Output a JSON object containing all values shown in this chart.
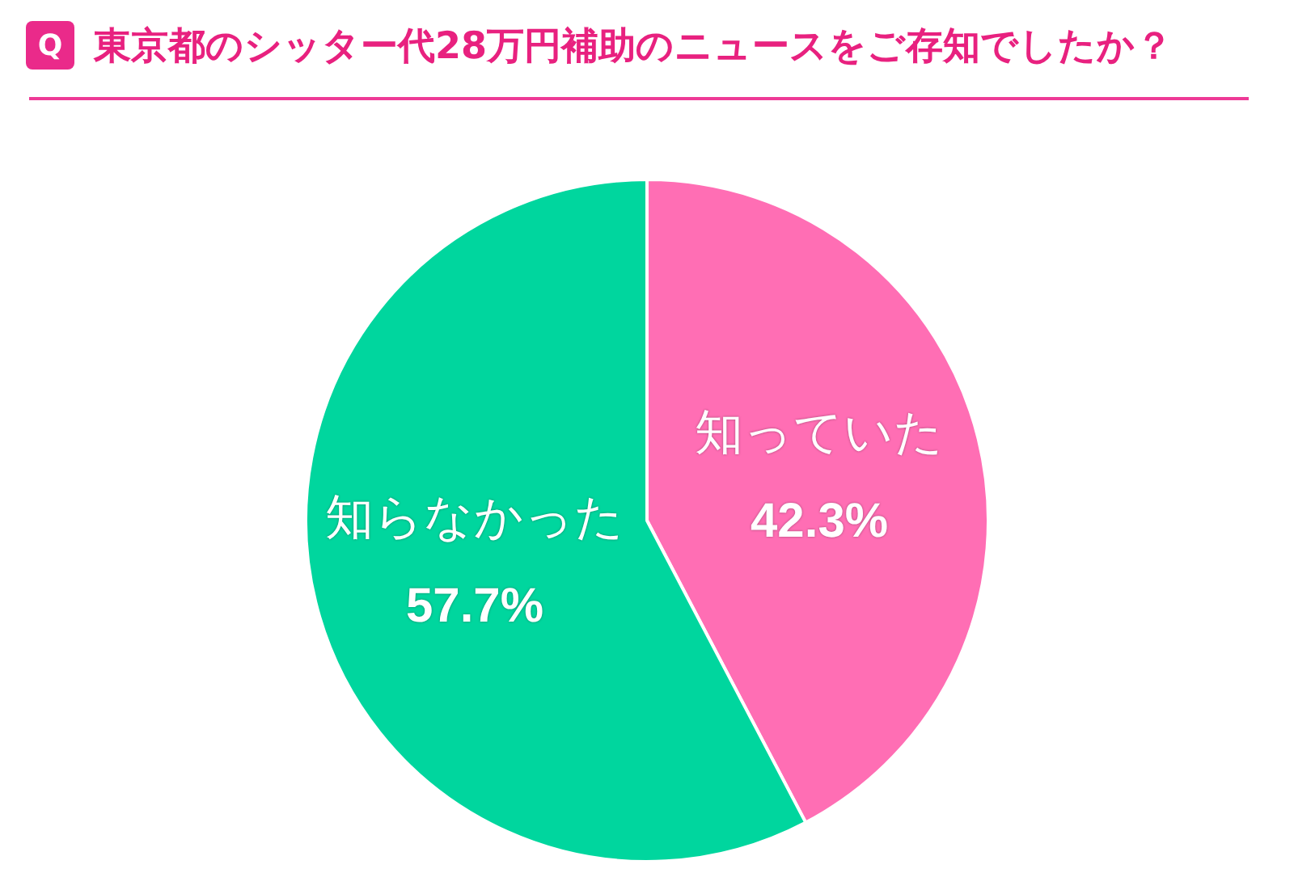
{
  "chart_data": {
    "type": "pie",
    "title": "東京都のシッター代28万円補助のニュースをご存知でしたか？",
    "annotations": [
      "Q"
    ],
    "categories": [
      "知っていた",
      "知らなかった"
    ],
    "values": [
      42.3,
      57.7
    ],
    "colors": [
      "#ff6eb4",
      "#00d69e"
    ],
    "value_labels": [
      "42.3%",
      "57.7%"
    ],
    "legend": false
  }
}
